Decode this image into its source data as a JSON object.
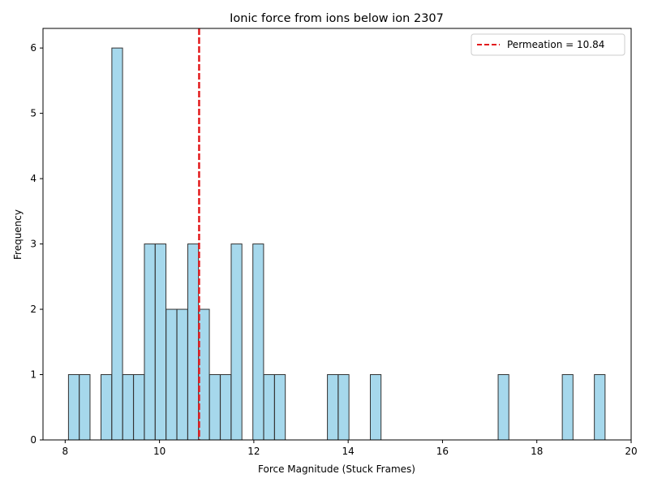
{
  "chart_data": {
    "type": "histogram",
    "title": "Ionic force from ions below ion 2307",
    "xlabel": "Force Magnitude (Stuck Frames)",
    "ylabel": "Frequency",
    "xlim": [
      7.53,
      20.0
    ],
    "ylim": [
      0,
      6.3
    ],
    "xticks": [
      8,
      10,
      12,
      14,
      16,
      18,
      20
    ],
    "yticks": [
      0,
      1,
      2,
      3,
      4,
      5,
      6
    ],
    "bin_width": 0.227,
    "bins": [
      {
        "x0": 8.07,
        "count": 1
      },
      {
        "x0": 8.3,
        "count": 1
      },
      {
        "x0": 8.76,
        "count": 1
      },
      {
        "x0": 8.99,
        "count": 6
      },
      {
        "x0": 9.22,
        "count": 1
      },
      {
        "x0": 9.45,
        "count": 1
      },
      {
        "x0": 9.68,
        "count": 3
      },
      {
        "x0": 9.91,
        "count": 3
      },
      {
        "x0": 10.14,
        "count": 2
      },
      {
        "x0": 10.37,
        "count": 2
      },
      {
        "x0": 10.6,
        "count": 3
      },
      {
        "x0": 10.83,
        "count": 2
      },
      {
        "x0": 11.06,
        "count": 1
      },
      {
        "x0": 11.29,
        "count": 1
      },
      {
        "x0": 11.52,
        "count": 3
      },
      {
        "x0": 11.98,
        "count": 3
      },
      {
        "x0": 12.21,
        "count": 1
      },
      {
        "x0": 12.44,
        "count": 1
      },
      {
        "x0": 13.56,
        "count": 1
      },
      {
        "x0": 13.79,
        "count": 1
      },
      {
        "x0": 14.47,
        "count": 1
      },
      {
        "x0": 17.18,
        "count": 1
      },
      {
        "x0": 18.54,
        "count": 1
      },
      {
        "x0": 19.22,
        "count": 1
      }
    ],
    "reference_line": {
      "x": 10.84,
      "label": "Permeation = 10.84",
      "color": "#e31a1c",
      "style": "dashed"
    },
    "bar_color": "#a6d8ec",
    "bar_edge_color": "#333333",
    "legend_position": "top-right",
    "grid": false
  }
}
